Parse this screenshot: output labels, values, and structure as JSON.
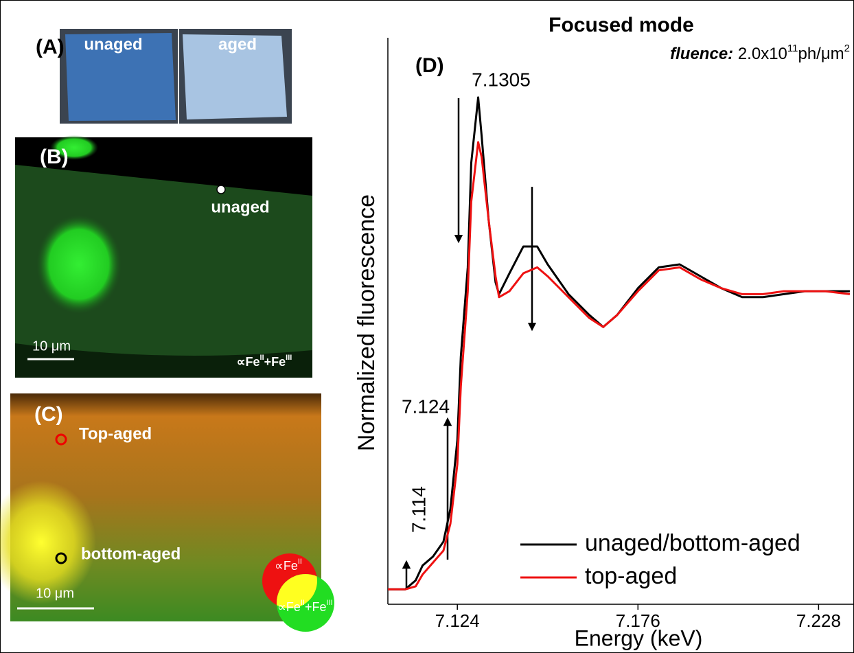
{
  "panels": {
    "A": {
      "label": "(A)",
      "left": "unaged",
      "right": "aged"
    },
    "B": {
      "label": "(B)",
      "point": "unaged",
      "scale": "10 μm",
      "channel": [
        "∝Fe",
        "II",
        "+Fe",
        "III"
      ]
    },
    "C": {
      "label": "(C)",
      "top_point": "Top-aged",
      "bottom_point": "bottom-aged",
      "scale": "10 μm",
      "red_channel": [
        "∝Fe",
        "II"
      ],
      "green_channel": [
        "∝Fe",
        "II",
        "+Fe",
        "III"
      ]
    }
  },
  "chart_data": {
    "type": "line",
    "title": "Focused mode",
    "panel_label": "(D)",
    "fluence": [
      "fluence:",
      " 2.0x10",
      "11",
      "ph/μm",
      "2"
    ],
    "xlabel": "Energy (keV)",
    "ylabel": "Normalized fluorescence",
    "annotations": [
      "7.1305",
      "7.124",
      "7.114"
    ],
    "x": [
      7.104,
      7.109,
      7.112,
      7.114,
      7.117,
      7.12,
      7.122,
      7.124,
      7.125,
      7.127,
      7.128,
      7.13,
      7.131,
      7.133,
      7.135,
      7.136,
      7.139,
      7.143,
      7.147,
      7.15,
      7.156,
      7.162,
      7.166,
      7.17,
      7.176,
      7.182,
      7.188,
      7.194,
      7.2,
      7.206,
      7.212,
      7.218,
      7.224,
      7.23,
      7.237
    ],
    "series": [
      {
        "name": "unaged/bottom-aged",
        "color": "#000000",
        "values": [
          0,
          0,
          0.03,
          0.08,
          0.11,
          0.16,
          0.27,
          0.5,
          0.78,
          1.08,
          1.43,
          1.65,
          1.52,
          1.24,
          1.03,
          0.99,
          1.06,
          1.15,
          1.15,
          1.09,
          0.99,
          0.92,
          0.88,
          0.92,
          1.01,
          1.08,
          1.09,
          1.05,
          1.01,
          0.98,
          0.98,
          0.99,
          1.0,
          1.0,
          1.0
        ]
      },
      {
        "name": "top-aged",
        "color": "#ee1111",
        "values": [
          0,
          0,
          0.01,
          0.05,
          0.09,
          0.13,
          0.22,
          0.42,
          0.68,
          1.0,
          1.3,
          1.5,
          1.45,
          1.24,
          1.05,
          0.98,
          1.0,
          1.06,
          1.08,
          1.05,
          0.98,
          0.91,
          0.88,
          0.92,
          1.0,
          1.07,
          1.08,
          1.04,
          1.01,
          0.99,
          0.99,
          1.0,
          1.0,
          1.0,
          0.99
        ]
      }
    ],
    "xlim": [
      7.104,
      7.238
    ],
    "xticks": [
      7.124,
      7.176,
      7.228
    ],
    "ylim": [
      -0.05,
      1.85
    ]
  }
}
